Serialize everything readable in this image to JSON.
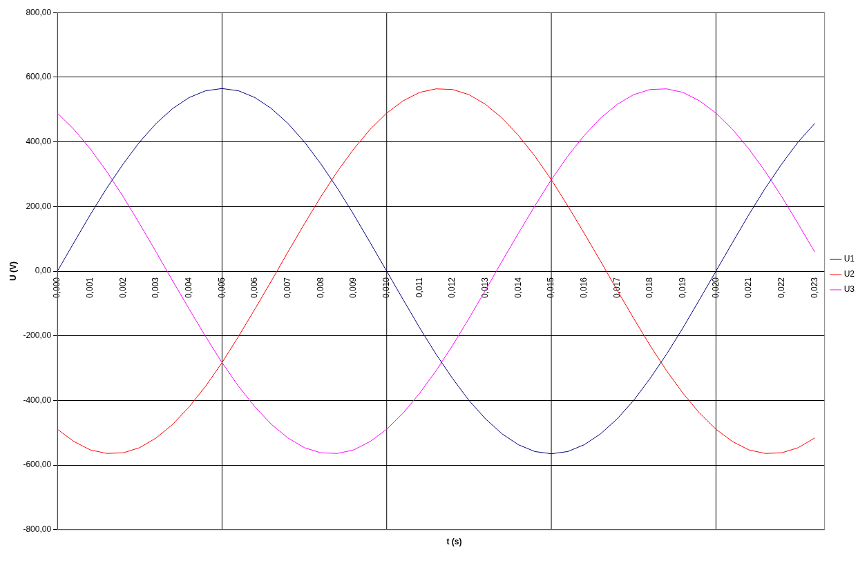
{
  "chart_data": {
    "type": "line",
    "xlabel": "t (s)",
    "ylabel": "U (V)",
    "x": [
      0,
      0.0005,
      0.001,
      0.0015,
      0.002,
      0.0025,
      0.003,
      0.0035,
      0.004,
      0.0045,
      0.005,
      0.0055,
      0.006,
      0.0065,
      0.007,
      0.0075,
      0.008,
      0.0085,
      0.009,
      0.0095,
      0.01,
      0.0105,
      0.011,
      0.0115,
      0.012,
      0.0125,
      0.013,
      0.0135,
      0.014,
      0.0145,
      0.015,
      0.0155,
      0.016,
      0.0165,
      0.017,
      0.0175,
      0.018,
      0.0185,
      0.019,
      0.0195,
      0.02,
      0.0205,
      0.021,
      0.0215,
      0.022,
      0.0225,
      0.023
    ],
    "series": [
      {
        "name": "U1",
        "color": "#000080",
        "values": [
          0,
          88,
          175,
          257,
          332,
          400,
          457,
          503,
          537,
          558,
          565,
          558,
          537,
          503,
          457,
          400,
          332,
          257,
          175,
          88,
          0,
          -88,
          -175,
          -257,
          -332,
          -400,
          -457,
          -503,
          -537,
          -558,
          -565,
          -558,
          -537,
          -503,
          -457,
          -400,
          -332,
          -257,
          -175,
          -88,
          0,
          88,
          175,
          257,
          332,
          400,
          457
        ]
      },
      {
        "name": "U2",
        "color": "#ff0000",
        "values": [
          -489,
          -527,
          -553,
          -564,
          -562,
          -546,
          -516,
          -474,
          -420,
          -356,
          -283,
          -202,
          -117,
          -30,
          59,
          146,
          230,
          308,
          378,
          439,
          489,
          527,
          553,
          564,
          562,
          546,
          516,
          474,
          420,
          356,
          283,
          202,
          117,
          30,
          -59,
          -146,
          -230,
          -308,
          -378,
          -439,
          -489,
          -527,
          -553,
          -564,
          -562,
          -546,
          -516
        ]
      },
      {
        "name": "U3",
        "color": "#ff00ff",
        "values": [
          489,
          439,
          378,
          308,
          230,
          146,
          59,
          -30,
          -117,
          -202,
          -283,
          -356,
          -420,
          -474,
          -516,
          -546,
          -562,
          -564,
          -553,
          -527,
          -489,
          -439,
          -378,
          -308,
          -230,
          -146,
          -59,
          30,
          117,
          202,
          283,
          356,
          420,
          474,
          516,
          546,
          562,
          564,
          553,
          527,
          489,
          439,
          378,
          308,
          230,
          146,
          59
        ]
      }
    ],
    "xlim": [
      0,
      0.0233
    ],
    "xticks": [
      {
        "value": 0,
        "label": "0,000"
      },
      {
        "value": 0.001,
        "label": "0,001"
      },
      {
        "value": 0.002,
        "label": "0,002"
      },
      {
        "value": 0.003,
        "label": "0,003"
      },
      {
        "value": 0.004,
        "label": "0,004"
      },
      {
        "value": 0.005,
        "label": "0,005"
      },
      {
        "value": 0.006,
        "label": "0,006"
      },
      {
        "value": 0.007,
        "label": "0,007"
      },
      {
        "value": 0.008,
        "label": "0,008"
      },
      {
        "value": 0.009,
        "label": "0,009"
      },
      {
        "value": 0.01,
        "label": "0,010"
      },
      {
        "value": 0.011,
        "label": "0,011"
      },
      {
        "value": 0.012,
        "label": "0,012"
      },
      {
        "value": 0.013,
        "label": "0,013"
      },
      {
        "value": 0.014,
        "label": "0,014"
      },
      {
        "value": 0.015,
        "label": "0,015"
      },
      {
        "value": 0.016,
        "label": "0,016"
      },
      {
        "value": 0.017,
        "label": "0,017"
      },
      {
        "value": 0.018,
        "label": "0,018"
      },
      {
        "value": 0.019,
        "label": "0,019"
      },
      {
        "value": 0.02,
        "label": "0,020"
      },
      {
        "value": 0.021,
        "label": "0,021"
      },
      {
        "value": 0.022,
        "label": "0,022"
      },
      {
        "value": 0.023,
        "label": "0,023"
      }
    ],
    "ylim": [
      -800,
      800
    ],
    "yticks": [
      {
        "value": -800,
        "label": "-800,00"
      },
      {
        "value": -600,
        "label": "-600,00"
      },
      {
        "value": -400,
        "label": "-400,00"
      },
      {
        "value": -200,
        "label": "-200,00"
      },
      {
        "value": 0,
        "label": "0,00"
      },
      {
        "value": 200,
        "label": "200,00"
      },
      {
        "value": 400,
        "label": "400,00"
      },
      {
        "value": 600,
        "label": "600,00"
      },
      {
        "value": 800,
        "label": "800,00"
      }
    ],
    "grid": "y",
    "ref_lines": [
      {
        "axis": "x",
        "value": 0.005,
        "color": "#000000"
      },
      {
        "axis": "x",
        "value": 0.01,
        "color": "#000000"
      },
      {
        "axis": "x",
        "value": 0.015,
        "color": "#000000"
      },
      {
        "axis": "x",
        "value": 0.02,
        "color": "#000000"
      }
    ],
    "legend": "right",
    "marker": "none",
    "line_style": "solid"
  }
}
